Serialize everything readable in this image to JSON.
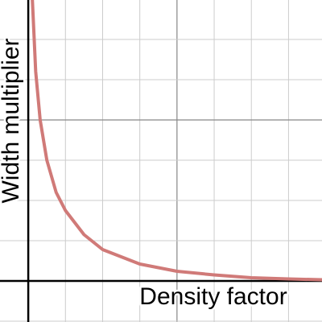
{
  "chart_data": {
    "type": "line",
    "x_label": "Density factor",
    "y_label": "Width multiplier",
    "x": [
      0.11,
      0.2,
      0.32,
      0.5,
      0.75,
      1,
      1.5,
      2,
      3,
      4,
      5,
      6,
      7,
      7.9
    ],
    "series": [
      {
        "name": "curve",
        "color": "#d07a78",
        "values": [
          7,
          5.2,
          4,
          3.0,
          2.2,
          1.75,
          1.15,
          0.78,
          0.42,
          0.24,
          0.15,
          0.08,
          0.05,
          0.03
        ]
      }
    ],
    "xlim": [
      -0.76,
      7.9
    ],
    "ylim": [
      -1.02,
      6.98
    ],
    "xticks": [
      0,
      1,
      2,
      3,
      4,
      5,
      6,
      7
    ],
    "yticks": [
      -1,
      0,
      1,
      2,
      3,
      4,
      5,
      6
    ],
    "xmajor": [
      4
    ],
    "ymajor": [
      4
    ],
    "grid": true,
    "show_legend": false
  }
}
